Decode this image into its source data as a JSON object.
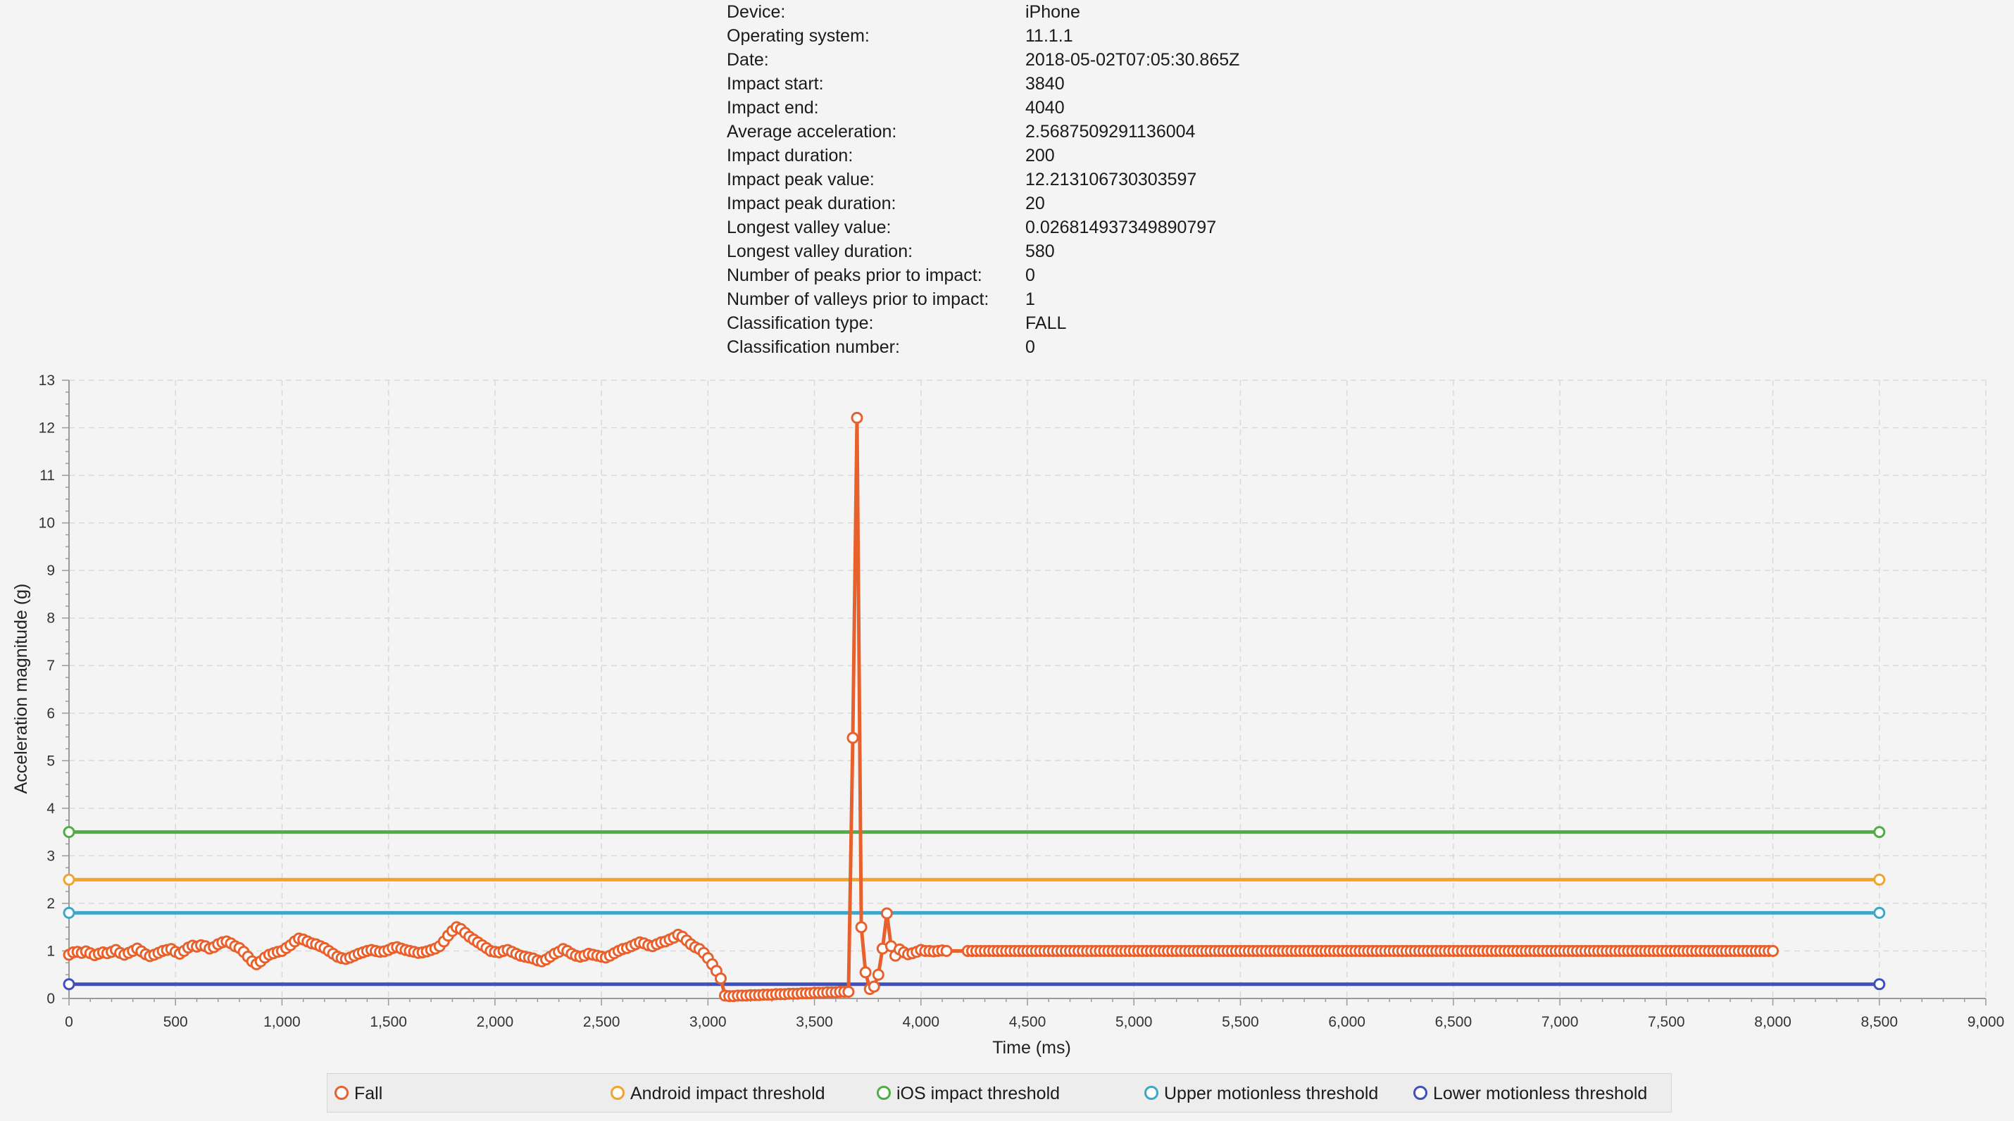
{
  "info": [
    {
      "label": "Device:",
      "value": "iPhone"
    },
    {
      "label": "Operating system:",
      "value": "11.1.1"
    },
    {
      "label": "Date:",
      "value": "2018-05-02T07:05:30.865Z"
    },
    {
      "label": "Impact start:",
      "value": "3840"
    },
    {
      "label": "Impact end:",
      "value": "4040"
    },
    {
      "label": "Average acceleration:",
      "value": "2.5687509291136004"
    },
    {
      "label": "Impact duration:",
      "value": "200"
    },
    {
      "label": "Impact peak value:",
      "value": "12.213106730303597"
    },
    {
      "label": "Impact peak duration:",
      "value": "20"
    },
    {
      "label": "Longest valley value:",
      "value": "0.026814937349890797"
    },
    {
      "label": "Longest valley duration:",
      "value": "580"
    },
    {
      "label": "Number of peaks prior to impact:",
      "value": "0"
    },
    {
      "label": "Number of valleys prior to impact:",
      "value": "1"
    },
    {
      "label": "Classification type:",
      "value": "FALL"
    },
    {
      "label": "Classification number:",
      "value": "0"
    }
  ],
  "chart_data": {
    "type": "line",
    "xlabel": "Time (ms)",
    "ylabel": "Acceleration magnitude (g)",
    "xlim": [
      0,
      9000
    ],
    "ylim": [
      0,
      13
    ],
    "xticks": [
      0,
      500,
      1000,
      1500,
      2000,
      2500,
      3000,
      3500,
      4000,
      4500,
      5000,
      5500,
      6000,
      6500,
      7000,
      7500,
      8000,
      8500,
      9000
    ],
    "xtick_labels": [
      "0",
      "500",
      "1,000",
      "1,500",
      "2,000",
      "2,500",
      "3,000",
      "3,500",
      "4,000",
      "4,500",
      "5,000",
      "5,500",
      "6,000",
      "6,500",
      "7,000",
      "7,500",
      "8,000",
      "8,500",
      "9,000"
    ],
    "yticks": [
      0,
      1,
      2,
      3,
      4,
      5,
      6,
      7,
      8,
      9,
      10,
      11,
      12,
      13
    ],
    "grid": true,
    "legend_position": "bottom",
    "series": [
      {
        "name": "Fall",
        "color": "#e8602c",
        "marker": "circle",
        "x_start": 0,
        "x_step": 20,
        "values": [
          0.92,
          0.97,
          0.98,
          0.96,
          0.99,
          0.95,
          0.91,
          0.94,
          0.97,
          0.95,
          0.98,
          1.02,
          0.96,
          0.92,
          0.96,
          1.0,
          1.05,
          0.99,
          0.93,
          0.89,
          0.92,
          0.96,
          1.0,
          1.02,
          1.04,
          0.98,
          0.94,
          1.0,
          1.07,
          1.11,
          1.09,
          1.12,
          1.1,
          1.05,
          1.08,
          1.14,
          1.18,
          1.2,
          1.16,
          1.1,
          1.06,
          0.98,
          0.88,
          0.78,
          0.72,
          0.78,
          0.86,
          0.92,
          0.95,
          0.98,
          1.0,
          1.06,
          1.12,
          1.2,
          1.26,
          1.24,
          1.2,
          1.16,
          1.14,
          1.1,
          1.06,
          1.0,
          0.94,
          0.88,
          0.85,
          0.83,
          0.86,
          0.9,
          0.94,
          0.97,
          1.0,
          1.02,
          1.0,
          0.98,
          0.99,
          1.02,
          1.06,
          1.08,
          1.05,
          1.02,
          1.0,
          0.98,
          0.96,
          0.97,
          0.99,
          1.02,
          1.05,
          1.1,
          1.2,
          1.32,
          1.42,
          1.5,
          1.46,
          1.38,
          1.3,
          1.24,
          1.18,
          1.12,
          1.06,
          1.0,
          0.98,
          0.97,
          1.0,
          1.02,
          0.98,
          0.94,
          0.9,
          0.88,
          0.86,
          0.84,
          0.8,
          0.78,
          0.82,
          0.88,
          0.94,
          0.98,
          1.04,
          1.0,
          0.94,
          0.9,
          0.88,
          0.9,
          0.94,
          0.92,
          0.9,
          0.88,
          0.86,
          0.9,
          0.95,
          1.0,
          1.04,
          1.06,
          1.1,
          1.14,
          1.18,
          1.16,
          1.12,
          1.1,
          1.14,
          1.18,
          1.2,
          1.24,
          1.28,
          1.34,
          1.3,
          1.22,
          1.14,
          1.08,
          1.04,
          0.96,
          0.85,
          0.72,
          0.58,
          0.42,
          0.06,
          0.05,
          0.05,
          0.06,
          0.06,
          0.06,
          0.07,
          0.07,
          0.07,
          0.08,
          0.08,
          0.08,
          0.09,
          0.09,
          0.09,
          0.1,
          0.1,
          0.1,
          0.11,
          0.11,
          0.11,
          0.12,
          0.12,
          0.12,
          0.13,
          0.13,
          0.13,
          0.14,
          0.14,
          0.14,
          5.48,
          12.21,
          1.5,
          0.55,
          0.2,
          0.25,
          0.5,
          1.05,
          1.79,
          1.1,
          0.9,
          1.03,
          0.97,
          0.93,
          0.95,
          0.98,
          1.02,
          1.0,
          1.0,
          0.99,
          1.0,
          1.01,
          1.0
        ]
      },
      {
        "name": "Android impact threshold",
        "color": "#f2a32c",
        "marker": "circle",
        "x": [
          0,
          8500
        ],
        "values": [
          2.5,
          2.5
        ]
      },
      {
        "name": "iOS impact threshold",
        "color": "#4caf45",
        "marker": "circle",
        "x": [
          0,
          8500
        ],
        "values": [
          3.5,
          3.5
        ]
      },
      {
        "name": "Upper motionless threshold",
        "color": "#3ea6c8",
        "marker": "circle",
        "x": [
          0,
          8500
        ],
        "values": [
          1.8,
          1.8
        ]
      },
      {
        "name": "Lower motionless threshold",
        "color": "#3f4fbe",
        "marker": "circle",
        "x": [
          0,
          8500
        ],
        "values": [
          0.3,
          0.3
        ]
      }
    ],
    "fall_tail": {
      "x_start": 4220,
      "x_end": 8000,
      "x_step": 20,
      "value": 1.0
    }
  }
}
